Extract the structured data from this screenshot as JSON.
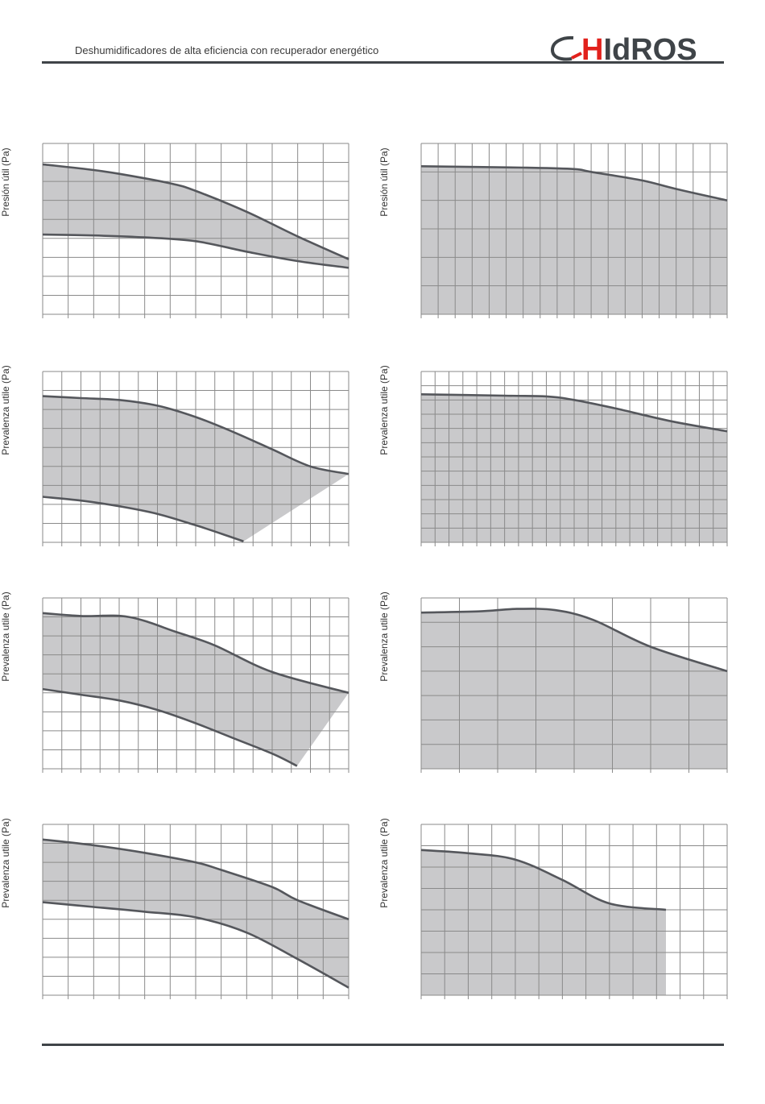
{
  "header": {
    "subtitle": "Deshumidificadores de alta eficiencia con recuperador energético",
    "logo_text": "HIdROS",
    "brand_red": "#e2211c",
    "brand_gray": "#3f4448"
  },
  "colors": {
    "band_fill": "#c9c9cb",
    "curve_stroke": "#55575c",
    "grid": "#8a8a8a"
  },
  "chart_data": [
    {
      "type": "area",
      "ylabel": "Presión útil (Pa)",
      "cols": 12,
      "rows": 9,
      "xlim": [
        0,
        12
      ],
      "ylim": [
        0,
        9
      ],
      "upper": [
        [
          0,
          7.9
        ],
        [
          2,
          7.6
        ],
        [
          3,
          7.4
        ],
        [
          5,
          6.9
        ],
        [
          6,
          6.5
        ],
        [
          8,
          5.4
        ],
        [
          10,
          4.1
        ],
        [
          12,
          2.9
        ]
      ],
      "lower": [
        [
          0,
          4.2
        ],
        [
          2,
          4.15
        ],
        [
          4,
          4.05
        ],
        [
          6,
          3.85
        ],
        [
          8,
          3.3
        ],
        [
          10,
          2.8
        ],
        [
          12,
          2.45
        ]
      ]
    },
    {
      "type": "area",
      "ylabel": "Presión útil (Pa)",
      "cols": 18,
      "rows": 6,
      "xlim": [
        0,
        18
      ],
      "ylim": [
        0,
        6
      ],
      "upper": [
        [
          0,
          5.2
        ],
        [
          6,
          5.15
        ],
        [
          9,
          5.1
        ],
        [
          10,
          5.0
        ],
        [
          13,
          4.7
        ],
        [
          15,
          4.4
        ],
        [
          18,
          4.0
        ]
      ],
      "lower_baseline": true
    },
    {
      "type": "area",
      "ylabel": "Prevalenza utile (Pa)",
      "cols": 16,
      "rows": 9,
      "xlim": [
        0,
        16
      ],
      "ylim": [
        0,
        9
      ],
      "upper": [
        [
          0,
          7.7
        ],
        [
          2,
          7.6
        ],
        [
          4,
          7.5
        ],
        [
          6,
          7.2
        ],
        [
          8,
          6.6
        ],
        [
          10,
          5.8
        ],
        [
          12,
          4.9
        ],
        [
          14,
          4.0
        ],
        [
          16,
          3.6
        ]
      ],
      "lower": [
        [
          0,
          2.4
        ],
        [
          2,
          2.2
        ],
        [
          4,
          1.9
        ],
        [
          6,
          1.5
        ],
        [
          8,
          0.9
        ],
        [
          9.5,
          0.4
        ],
        [
          10.5,
          0.05
        ]
      ],
      "right_edge_to": [
        16,
        3.6
      ]
    },
    {
      "type": "area",
      "ylabel": "Prevalenza utile (Pa)",
      "cols": 22,
      "rows": 12,
      "xlim": [
        0,
        22
      ],
      "ylim": [
        0,
        12
      ],
      "upper": [
        [
          0,
          10.4
        ],
        [
          6,
          10.3
        ],
        [
          9,
          10.25
        ],
        [
          11,
          10.0
        ],
        [
          14,
          9.4
        ],
        [
          18,
          8.5
        ],
        [
          22,
          7.8
        ]
      ],
      "lower_baseline": true
    },
    {
      "type": "area",
      "ylabel": "Prevalenza utile (Pa)",
      "cols": 16,
      "rows": 9,
      "xlim": [
        0,
        16
      ],
      "ylim": [
        0,
        9
      ],
      "upper": [
        [
          0,
          8.2
        ],
        [
          2,
          8.05
        ],
        [
          4.5,
          8.0
        ],
        [
          7,
          7.2
        ],
        [
          9,
          6.5
        ],
        [
          12,
          5.1
        ],
        [
          16,
          4.0
        ]
      ],
      "lower": [
        [
          0,
          4.2
        ],
        [
          2,
          3.9
        ],
        [
          4,
          3.6
        ],
        [
          6,
          3.1
        ],
        [
          8,
          2.4
        ],
        [
          10,
          1.6
        ],
        [
          12,
          0.8
        ],
        [
          13.3,
          0.15
        ]
      ],
      "right_edge_to": [
        16,
        4.0
      ]
    },
    {
      "type": "area",
      "ylabel": "Prevalenza utile (Pa)",
      "cols": 8,
      "rows": 7,
      "xlim": [
        0,
        8
      ],
      "ylim": [
        0,
        7
      ],
      "upper": [
        [
          0,
          6.4
        ],
        [
          1.5,
          6.45
        ],
        [
          2.5,
          6.55
        ],
        [
          3.5,
          6.5
        ],
        [
          4.5,
          6.1
        ],
        [
          6,
          5.0
        ],
        [
          8,
          4.0
        ]
      ],
      "lower_baseline": true
    },
    {
      "type": "area",
      "ylabel": "Prevalenza utile (Pa)",
      "cols": 12,
      "rows": 9,
      "xlim": [
        0,
        12
      ],
      "ylim": [
        0,
        9
      ],
      "upper": [
        [
          0,
          8.2
        ],
        [
          2,
          7.9
        ],
        [
          4,
          7.5
        ],
        [
          6,
          7.0
        ],
        [
          7,
          6.6
        ],
        [
          9,
          5.7
        ],
        [
          10,
          5.0
        ],
        [
          12,
          4.0
        ]
      ],
      "lower": [
        [
          0,
          4.9
        ],
        [
          2,
          4.65
        ],
        [
          4,
          4.4
        ],
        [
          6,
          4.1
        ],
        [
          8,
          3.3
        ],
        [
          10,
          1.9
        ],
        [
          12,
          0.4
        ]
      ]
    },
    {
      "type": "area",
      "ylabel": "Prevalenza utile (Pa)",
      "cols": 13,
      "rows": 8,
      "xlim": [
        0,
        13
      ],
      "ylim": [
        0,
        8
      ],
      "upper": [
        [
          0,
          6.8
        ],
        [
          2,
          6.65
        ],
        [
          4,
          6.35
        ],
        [
          6,
          5.4
        ],
        [
          8,
          4.3
        ],
        [
          10.4,
          4.0
        ]
      ],
      "lower_baseline": true,
      "cut_x": 10.4
    }
  ]
}
